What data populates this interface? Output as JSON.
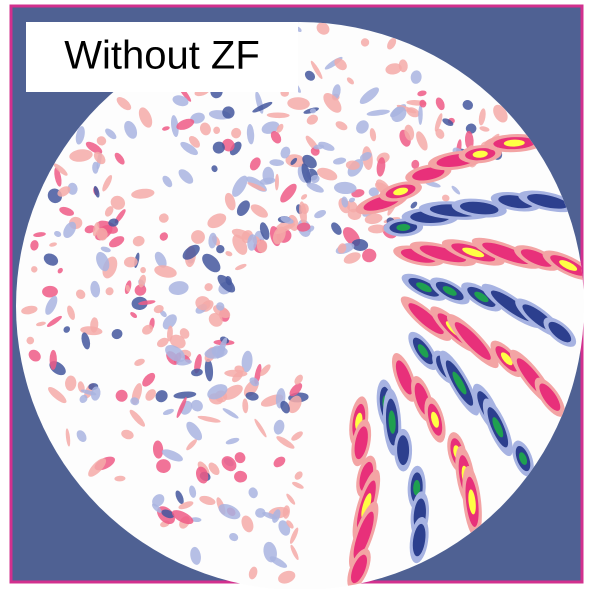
{
  "label": "Without ZF"
}
